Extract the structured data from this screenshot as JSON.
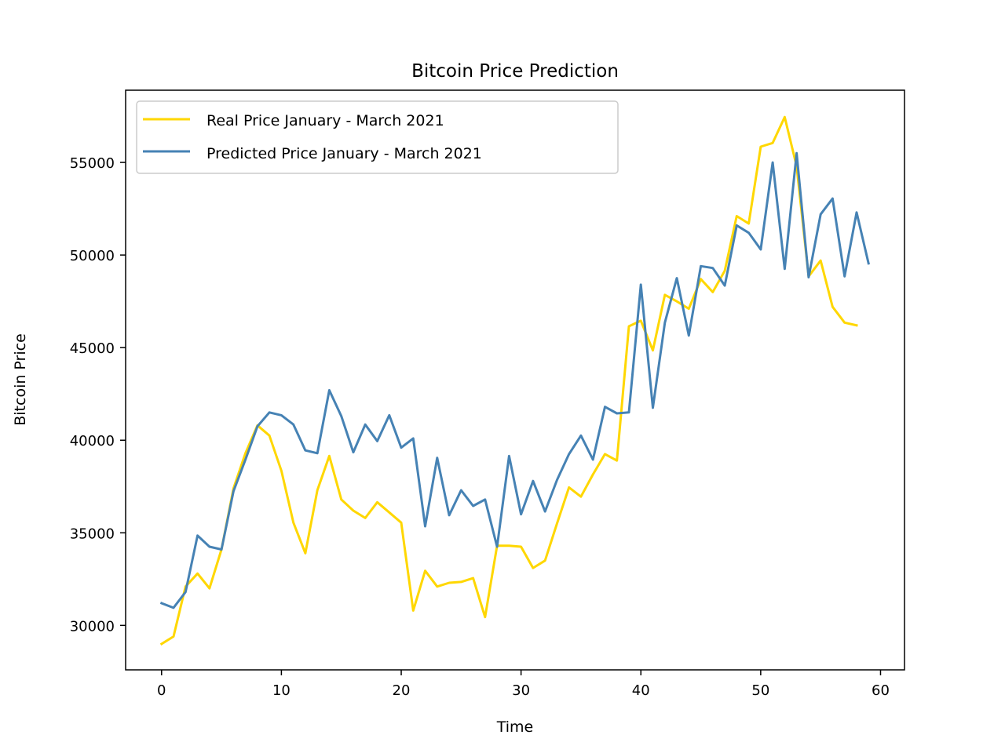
{
  "chart_data": {
    "type": "line",
    "title": "Bitcoin Price Prediction",
    "xlabel": "Time",
    "ylabel": "Bitcoin Price",
    "xlim": [
      -3,
      62
    ],
    "ylim": [
      27600,
      58900
    ],
    "xticks": [
      0,
      10,
      20,
      30,
      40,
      50,
      60
    ],
    "yticks": [
      30000,
      35000,
      40000,
      45000,
      50000,
      55000
    ],
    "grid": false,
    "legend_position": "upper left",
    "series": [
      {
        "name": "Real Price January - March 2021",
        "color": "#FFD700",
        "x": [
          0,
          1,
          2,
          3,
          4,
          5,
          6,
          7,
          8,
          9,
          10,
          11,
          12,
          13,
          14,
          15,
          16,
          17,
          18,
          19,
          20,
          21,
          22,
          23,
          24,
          25,
          26,
          27,
          28,
          29,
          30,
          31,
          32,
          33,
          34,
          35,
          36,
          37,
          38,
          39,
          40,
          41,
          42,
          43,
          44,
          45,
          46,
          47,
          48,
          49,
          50,
          51,
          52,
          53,
          54,
          55,
          56,
          57,
          58
        ],
        "values": [
          29000,
          29400,
          32100,
          32800,
          32000,
          34100,
          37400,
          39300,
          40800,
          40250,
          38350,
          35550,
          33900,
          37300,
          39150,
          36800,
          36200,
          35800,
          36650,
          36100,
          35550,
          30800,
          32950,
          32100,
          32300,
          32350,
          32550,
          30450,
          34300,
          34300,
          34250,
          33100,
          33500,
          35500,
          37450,
          36950,
          38150,
          39250,
          38900,
          46150,
          46450,
          44850,
          47850,
          47500,
          47100,
          48700,
          48000,
          49150,
          52100,
          51700,
          55850,
          56050,
          57450,
          54800,
          48850,
          49700,
          47200,
          46350,
          46200
        ]
      },
      {
        "name": "Predicted Price January - March 2021",
        "color": "#4682B4",
        "x": [
          0,
          1,
          2,
          3,
          4,
          5,
          6,
          7,
          8,
          9,
          10,
          11,
          12,
          13,
          14,
          15,
          16,
          17,
          18,
          19,
          20,
          21,
          22,
          23,
          24,
          25,
          26,
          27,
          28,
          29,
          30,
          31,
          32,
          33,
          34,
          35,
          36,
          37,
          38,
          39,
          40,
          41,
          42,
          43,
          44,
          45,
          46,
          47,
          48,
          49,
          50,
          51,
          52,
          53,
          54,
          55,
          56,
          57,
          58,
          59
        ],
        "values": [
          31200,
          30950,
          31800,
          34850,
          34250,
          34100,
          37250,
          38950,
          40750,
          41500,
          41350,
          40850,
          39450,
          39300,
          42700,
          41300,
          39350,
          40850,
          39950,
          41350,
          39600,
          40100,
          35350,
          39050,
          35950,
          37300,
          36450,
          36800,
          34250,
          39150,
          36000,
          37800,
          36150,
          37850,
          39250,
          40250,
          38950,
          41800,
          41450,
          41500,
          48400,
          41750,
          46350,
          48750,
          45650,
          49400,
          49300,
          48350,
          51600,
          51200,
          50300,
          55000,
          49250,
          55500,
          48800,
          52200,
          53050,
          48850,
          52300,
          49550
        ]
      }
    ]
  }
}
